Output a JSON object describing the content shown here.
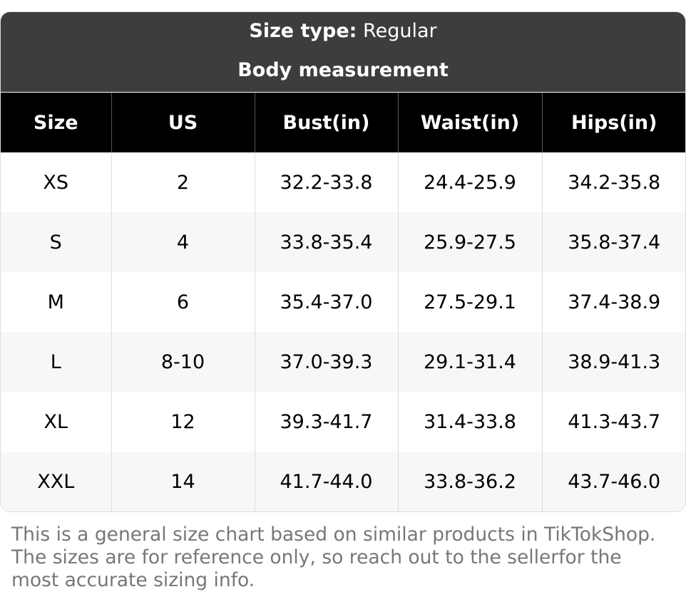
{
  "header": {
    "size_type_label": "Size type:",
    "size_type_value": "Regular",
    "subtitle": "Body measurement"
  },
  "table": {
    "columns": [
      "Size",
      "US",
      "Bust(in)",
      "Waist(in)",
      "Hips(in)"
    ],
    "rows": [
      [
        "XS",
        "2",
        "32.2-33.8",
        "24.4-25.9",
        "34.2-35.8"
      ],
      [
        "S",
        "4",
        "33.8-35.4",
        "25.9-27.5",
        "35.8-37.4"
      ],
      [
        "M",
        "6",
        "35.4-37.0",
        "27.5-29.1",
        "37.4-38.9"
      ],
      [
        "L",
        "8-10",
        "37.0-39.3",
        "29.1-31.4",
        "38.9-41.3"
      ],
      [
        "XL",
        "12",
        "39.3-41.7",
        "31.4-33.8",
        "41.3-43.7"
      ],
      [
        "XXL",
        "14",
        "41.7-44.0",
        "33.8-36.2",
        "43.7-46.0"
      ]
    ]
  },
  "footer": {
    "note": "This is a general size chart based on similar products in TikTokShop. The sizes are for reference only, so reach out to the sellerfor the most accurate sizing info."
  }
}
